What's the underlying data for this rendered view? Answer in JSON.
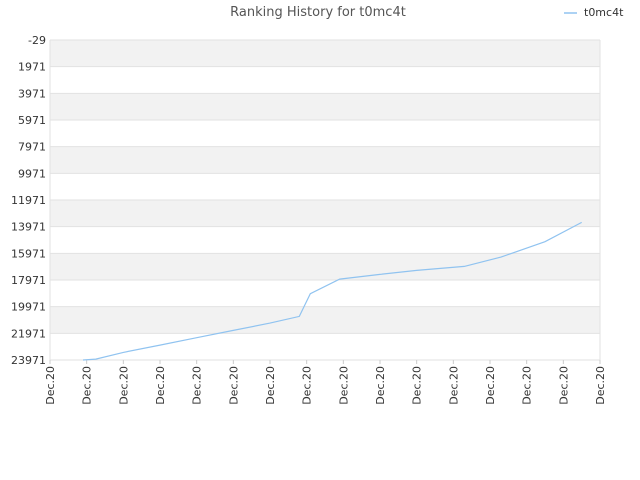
{
  "chart_data": {
    "type": "line",
    "title": "Ranking History for t0mc4t",
    "xlabel": "",
    "ylabel": "",
    "y_inverted": true,
    "ylim": [
      -29,
      23971
    ],
    "y_ticks": [
      -29,
      1971,
      3971,
      5971,
      7971,
      9971,
      11971,
      13971,
      15971,
      17971,
      19971,
      21971,
      23971
    ],
    "x_ticks": [
      "Dec.20",
      "Dec.20",
      "Dec.20",
      "Dec.20",
      "Dec.20",
      "Dec.20",
      "Dec.20",
      "Dec.20",
      "Dec.20",
      "Dec.20",
      "Dec.20",
      "Dec.20",
      "Dec.20",
      "Dec.20",
      "Dec.20",
      "Dec.20"
    ],
    "grid": true,
    "legend_position": "top-right",
    "series": [
      {
        "name": "t0mc4t",
        "color": "#90c3f0",
        "x": [
          0.9,
          1.25,
          2,
          3,
          4,
          5,
          6,
          6.8,
          7.1,
          7.9,
          9,
          10,
          11.3,
          12.3,
          13.5,
          14.5
        ],
        "values": [
          23971,
          23900,
          23400,
          22850,
          22300,
          21750,
          21200,
          20700,
          19000,
          17900,
          17550,
          17250,
          16950,
          16250,
          15100,
          13650
        ]
      }
    ],
    "xlim": [
      0,
      15
    ]
  }
}
